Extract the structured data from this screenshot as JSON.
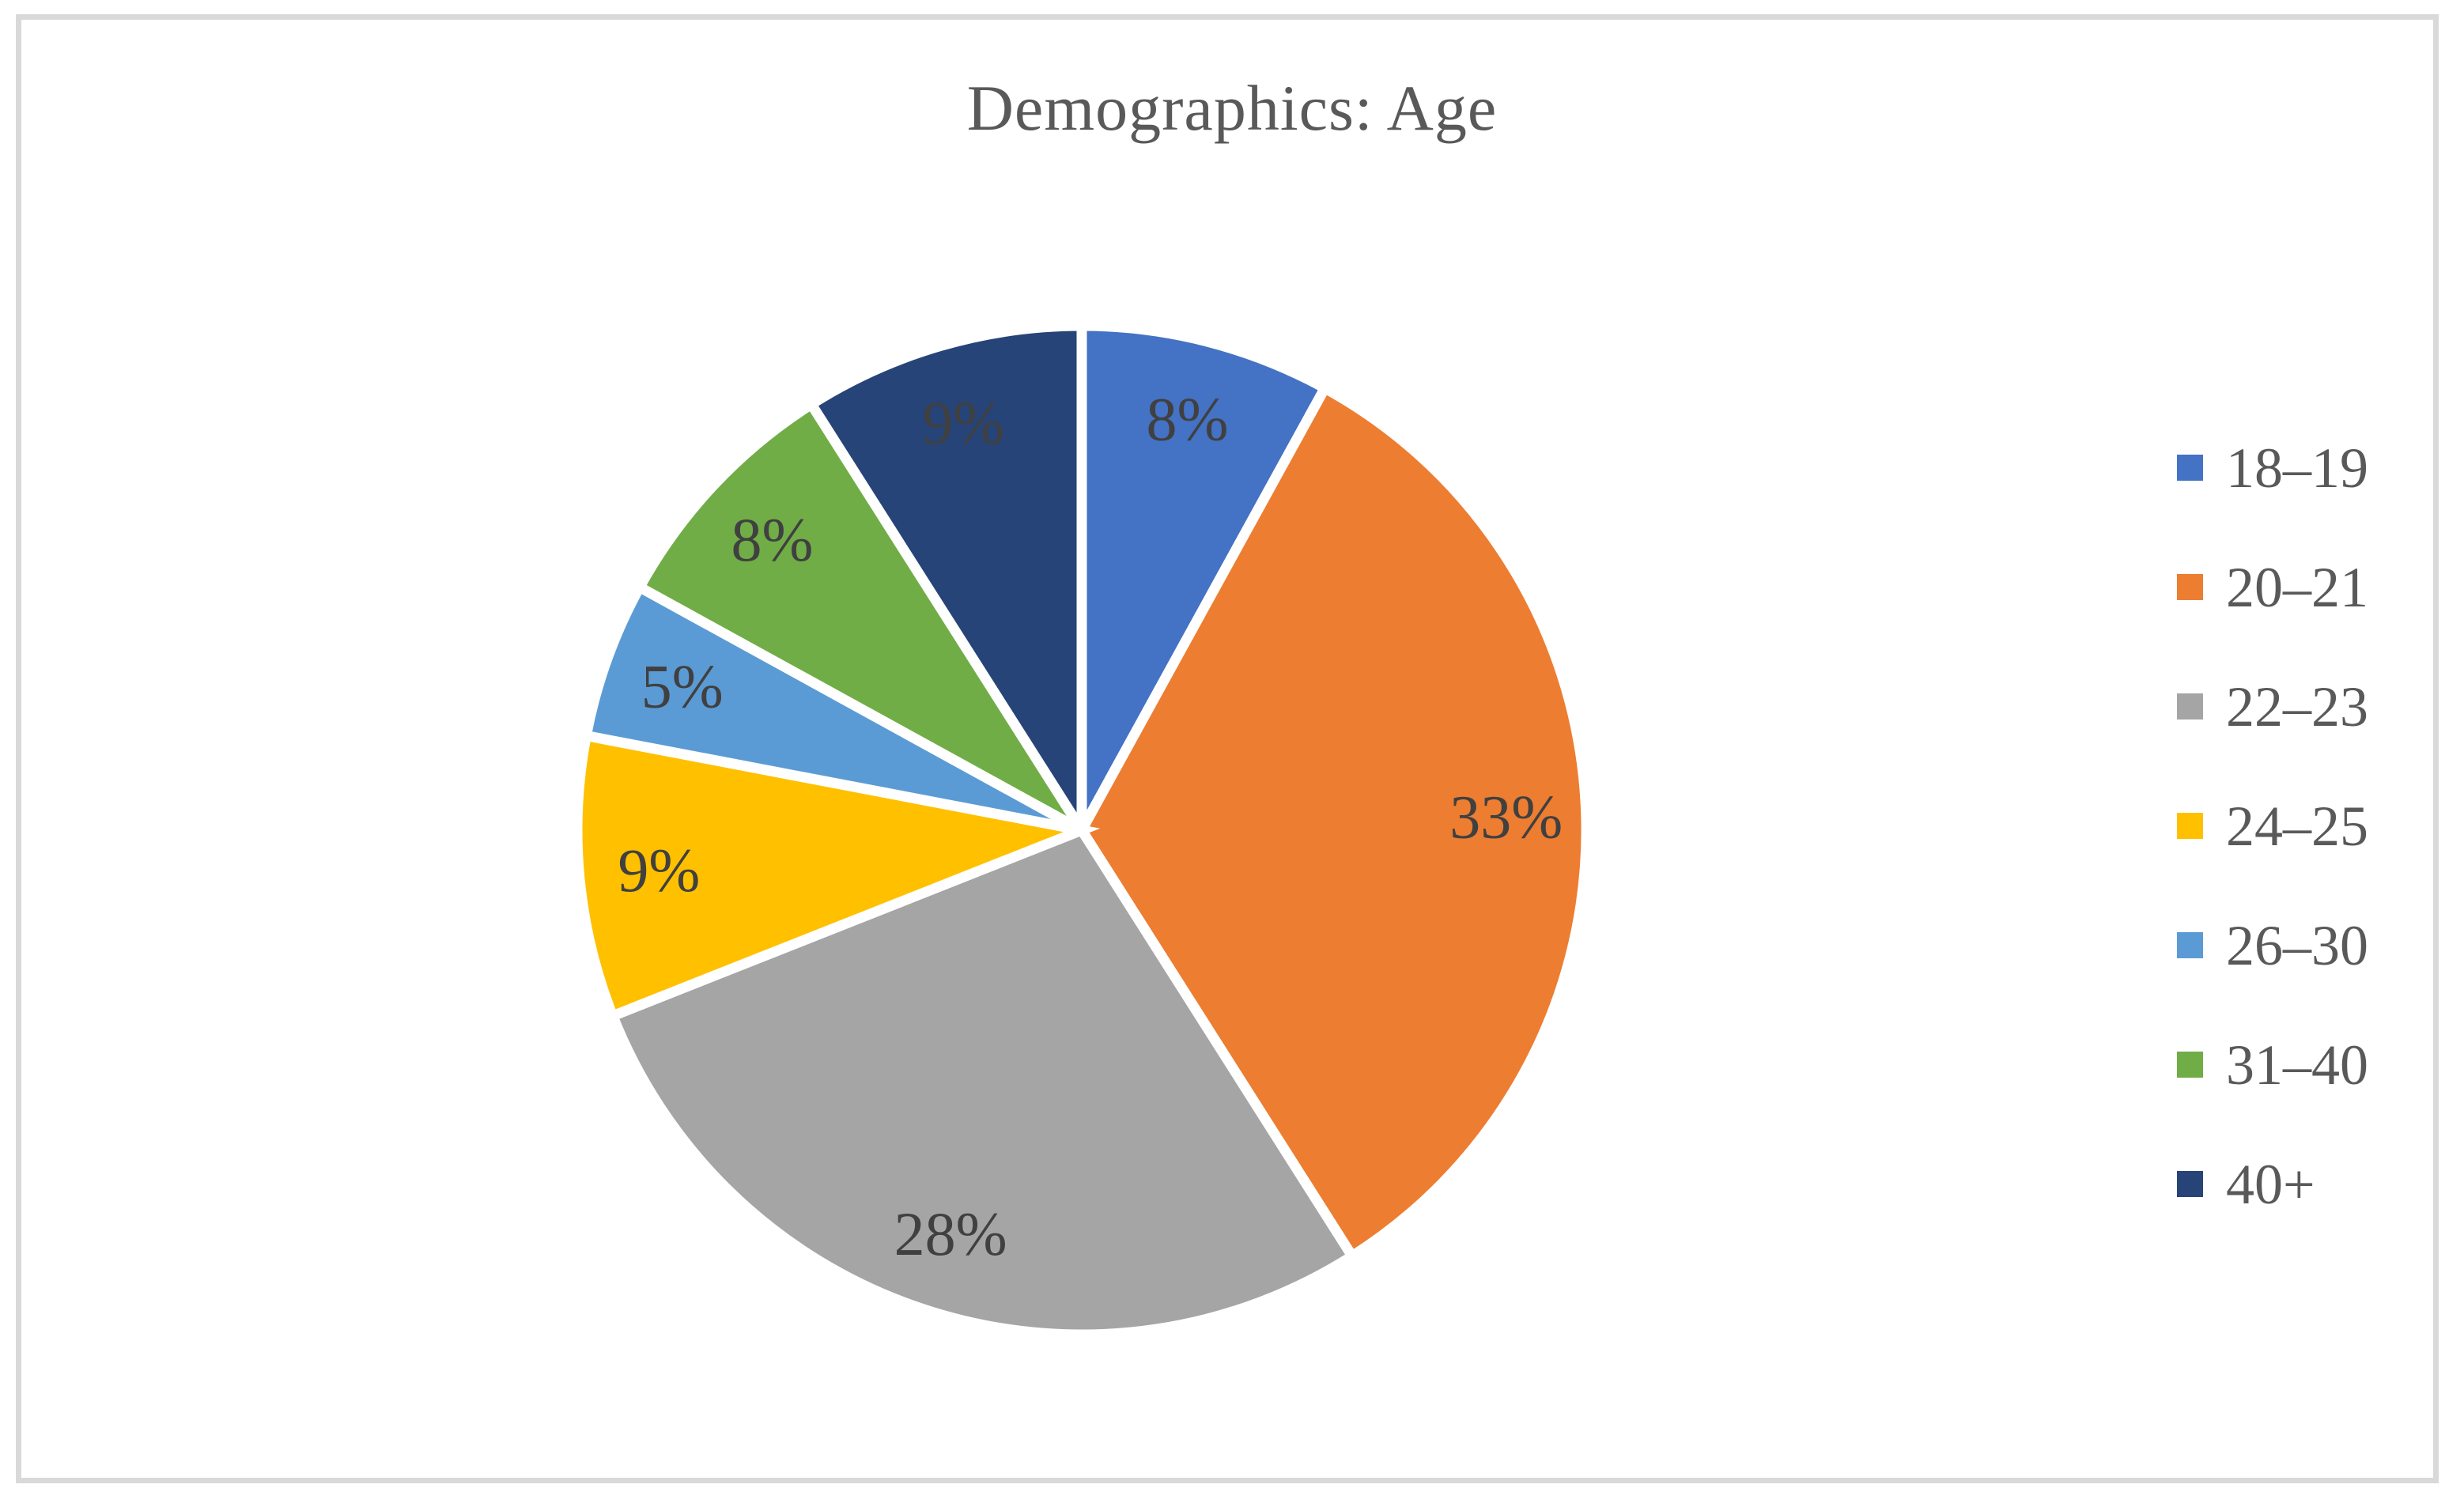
{
  "figure": {
    "frame_border_color": "#D9D9D9",
    "background_color": "#FFFFFF"
  },
  "chart_data": {
    "type": "pie",
    "title": "Demographics: Age",
    "title_color": "#595959",
    "categories": [
      "18–19",
      "20–21",
      "22–23",
      "24–25",
      "26–30",
      "31–40",
      "40+"
    ],
    "values": [
      8,
      33,
      28,
      9,
      5,
      8,
      9
    ],
    "unit": "%",
    "slice_labels": [
      "8%",
      "33%",
      "28%",
      "9%",
      "5%",
      "8%",
      "9%"
    ],
    "colors": [
      "#4472C4",
      "#ED7D31",
      "#A5A5A5",
      "#FFC000",
      "#5B9BD5",
      "#70AD47",
      "#264478"
    ],
    "slice_label_color": "#404040",
    "slice_separator_color": "#FFFFFF",
    "start_angle_deg": 0,
    "direction": "clockwise",
    "legend_position": "right",
    "legend_text_color": "#595959"
  }
}
